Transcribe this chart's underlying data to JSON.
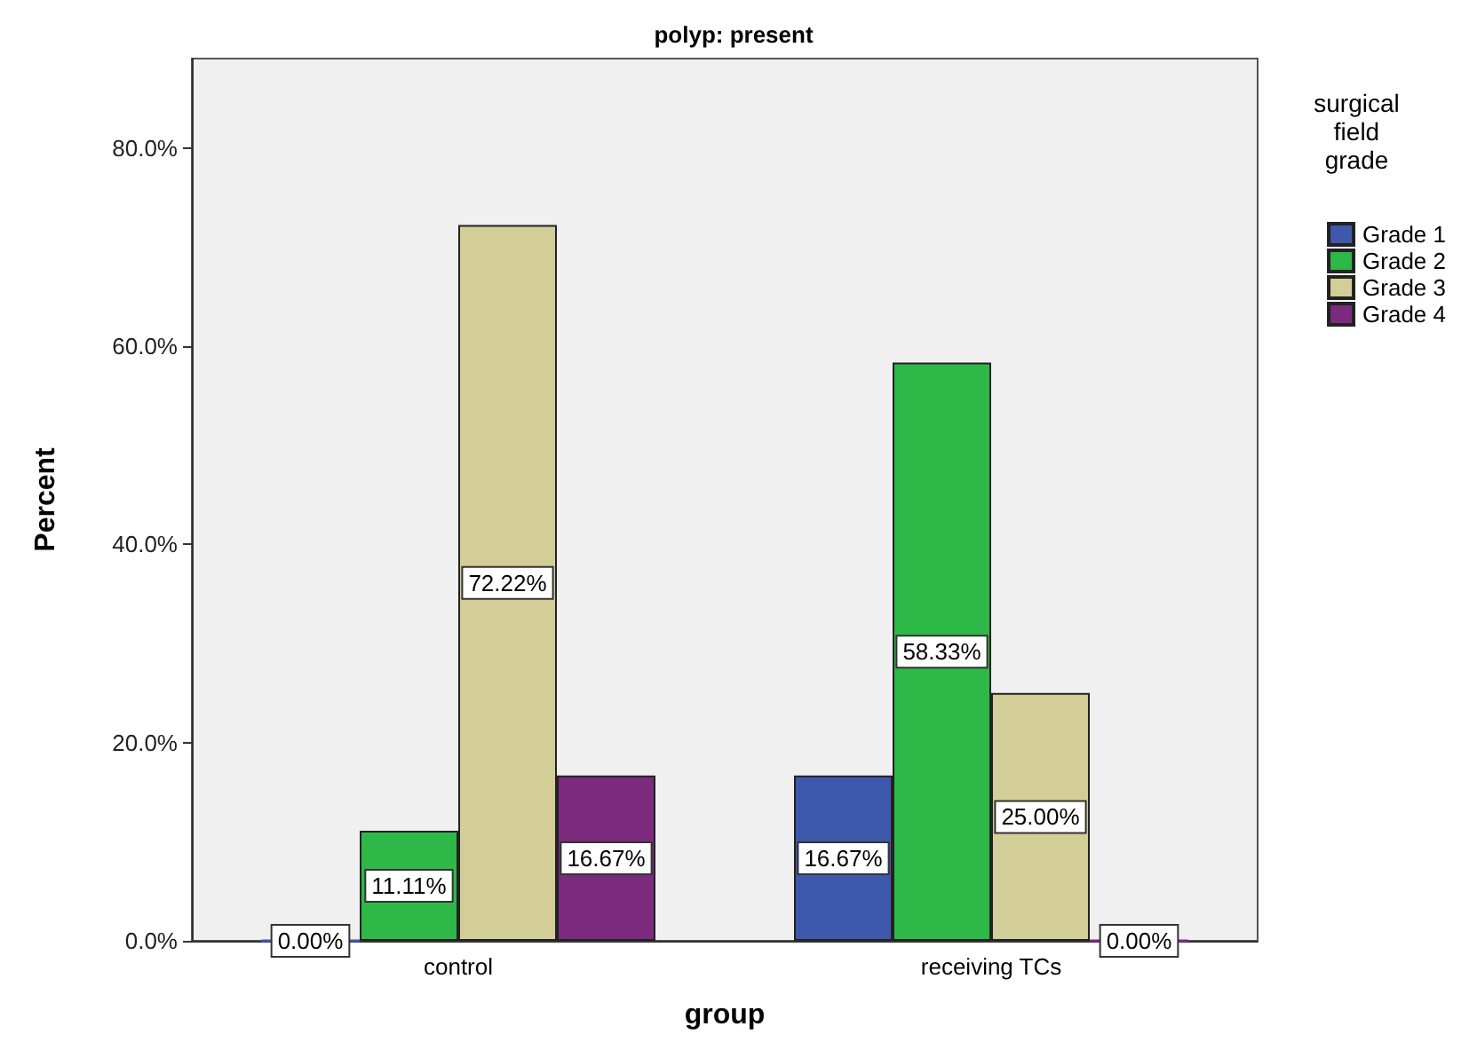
{
  "chart_data": {
    "type": "bar",
    "title": "polyp: present",
    "xlabel": "group",
    "ylabel": "Percent",
    "legend_title": "surgical field grade",
    "categories": [
      "control",
      "receiving TCs"
    ],
    "series": [
      {
        "name": "Grade 1",
        "color": "#3e58ac",
        "values": [
          0,
          16.67
        ],
        "value_labels": [
          "0.00%",
          "16.67%"
        ]
      },
      {
        "name": "Grade 2",
        "color": "#2eb848",
        "values": [
          11.11,
          58.33
        ],
        "value_labels": [
          "11.11%",
          "58.33%"
        ]
      },
      {
        "name": "Grade 3",
        "color": "#d3ce97",
        "values": [
          72.22,
          25.0
        ],
        "value_labels": [
          "72.22%",
          "25.00%"
        ]
      },
      {
        "name": "Grade 4",
        "color": "#7b2a7e",
        "values": [
          16.67,
          0
        ],
        "value_labels": [
          "16.67%",
          "0.00%"
        ]
      }
    ],
    "ylim": [
      0,
      89
    ],
    "yticks": [
      {
        "value": 0,
        "label": "0.0%"
      },
      {
        "value": 20,
        "label": "20.0%"
      },
      {
        "value": 40,
        "label": "40.0%"
      },
      {
        "value": 60,
        "label": "60.0%"
      },
      {
        "value": 80,
        "label": "80.0%"
      }
    ],
    "grid": false,
    "legend": "right"
  }
}
